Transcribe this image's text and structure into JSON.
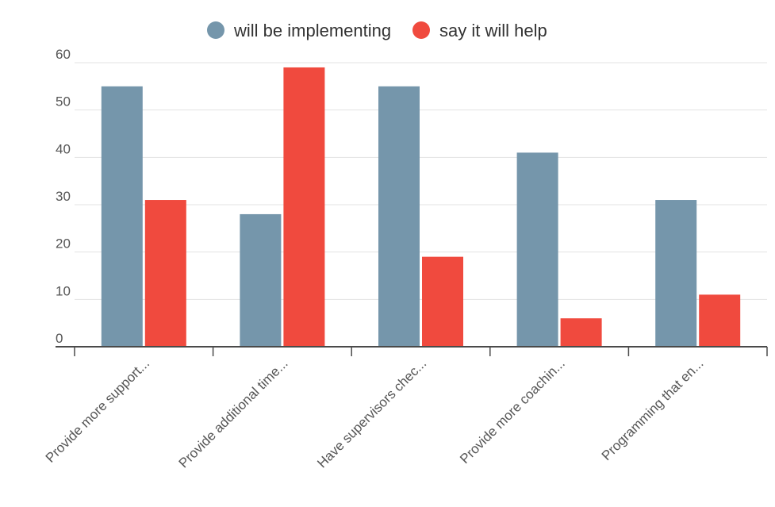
{
  "chart_data": {
    "type": "bar",
    "categories": [
      "Provide more support...",
      "Provide additional time...",
      "Have supervisors chec...",
      "Provide more coachin...",
      "Programming that en..."
    ],
    "series": [
      {
        "name": "will be implementing",
        "color": "#7596ab",
        "values": [
          55,
          28,
          55,
          41,
          31
        ]
      },
      {
        "name": "say it will help",
        "color": "#f04a3e",
        "values": [
          31,
          59,
          19,
          6,
          11
        ]
      }
    ],
    "ylim": [
      0,
      60
    ],
    "yticks": [
      "0",
      "10",
      "20",
      "30",
      "40",
      "50",
      "60"
    ],
    "grid": true,
    "legend_position": "top-center"
  }
}
